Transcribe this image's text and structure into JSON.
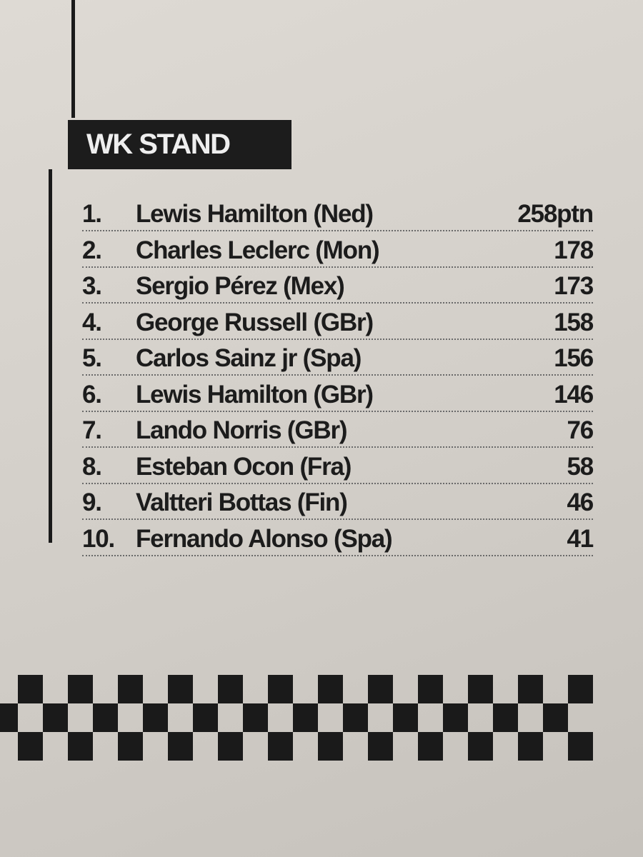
{
  "header": {
    "title": "WK STAND"
  },
  "table": {
    "rows": [
      {
        "rank": "1.",
        "name": "Lewis Hamilton (Ned)",
        "points": "258ptn"
      },
      {
        "rank": "2.",
        "name": "Charles Leclerc (Mon)",
        "points": "178"
      },
      {
        "rank": "3.",
        "name": "Sergio Pérez (Mex)",
        "points": "173"
      },
      {
        "rank": "4.",
        "name": "George Russell (GBr)",
        "points": "158"
      },
      {
        "rank": "5.",
        "name": "Carlos Sainz jr (Spa)",
        "points": "156"
      },
      {
        "rank": "6.",
        "name": "Lewis Hamilton (GBr)",
        "points": "146"
      },
      {
        "rank": "7.",
        "name": "Lando Norris (GBr)",
        "points": "76"
      },
      {
        "rank": "8.",
        "name": "Esteban Ocon (Fra)",
        "points": "58"
      },
      {
        "rank": "9.",
        "name": "Valtteri Bottas (Fin)",
        "points": "46"
      },
      {
        "rank": "10.",
        "name": "Fernando Alonso (Spa)",
        "points": "41"
      }
    ]
  }
}
